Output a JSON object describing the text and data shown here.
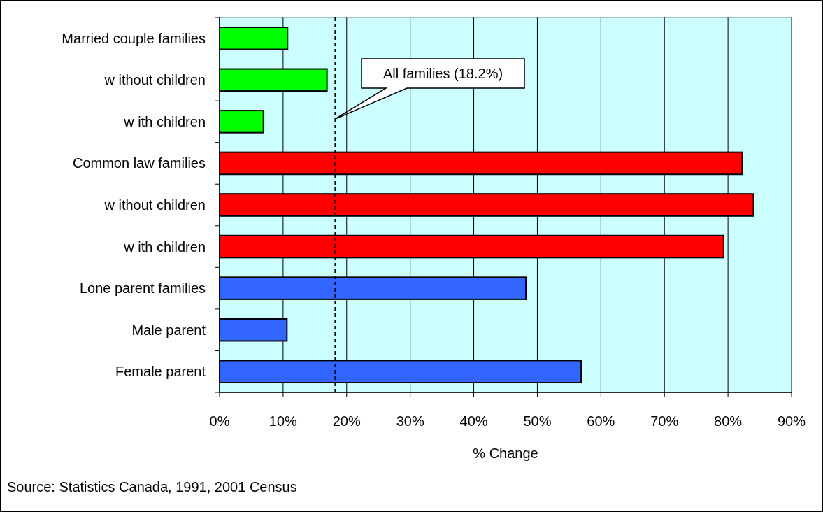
{
  "chart_data": {
    "type": "bar",
    "orientation": "horizontal",
    "xlabel": "% Change",
    "categories": [
      "Married couple families",
      "w ithout children",
      "w ith children",
      "Common law  families",
      "w ithout children",
      "w ith children",
      "Lone parent families",
      "Male parent",
      "Female parent"
    ],
    "values": [
      10.7,
      16.9,
      6.9,
      82.2,
      84.0,
      79.3,
      48.2,
      10.6,
      56.9
    ],
    "colors": [
      "#00ff00",
      "#00ff00",
      "#00ff00",
      "#ff0000",
      "#ff0000",
      "#ff0000",
      "#3366ff",
      "#3366ff",
      "#3366ff"
    ],
    "xlim": [
      0,
      90
    ],
    "xticks": [
      {
        "value": 0,
        "label": "0%"
      },
      {
        "value": 10,
        "label": "10%"
      },
      {
        "value": 20,
        "label": "20%"
      },
      {
        "value": 30,
        "label": "30%"
      },
      {
        "value": 40,
        "label": "40%"
      },
      {
        "value": 50,
        "label": "50%"
      },
      {
        "value": 60,
        "label": "60%"
      },
      {
        "value": 70,
        "label": "70%"
      },
      {
        "value": 80,
        "label": "80%"
      },
      {
        "value": 90,
        "label": "90%"
      }
    ],
    "grid": "x",
    "ref_lines": [
      {
        "axis": "x",
        "value": 18.2,
        "label": "All families (18.2%)",
        "color": "#000000",
        "line_style": "dashed"
      }
    ],
    "annotations": [
      "Source: Statistics Canada, 1991, 2001 Census"
    ]
  }
}
